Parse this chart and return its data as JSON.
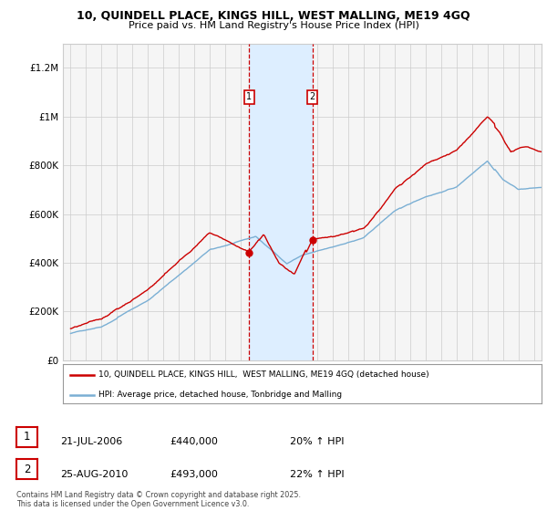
{
  "title_line1": "10, QUINDELL PLACE, KINGS HILL, WEST MALLING, ME19 4GQ",
  "title_line2": "Price paid vs. HM Land Registry's House Price Index (HPI)",
  "legend_label_red": "10, QUINDELL PLACE, KINGS HILL,  WEST MALLING, ME19 4GQ (detached house)",
  "legend_label_blue": "HPI: Average price, detached house, Tonbridge and Malling",
  "annotation1": {
    "label": "1",
    "date": "21-JUL-2006",
    "price": "£440,000",
    "hpi": "20% ↑ HPI"
  },
  "annotation2": {
    "label": "2",
    "date": "25-AUG-2010",
    "price": "£493,000",
    "hpi": "22% ↑ HPI"
  },
  "footer": "Contains HM Land Registry data © Crown copyright and database right 2025.\nThis data is licensed under the Open Government Licence v3.0.",
  "vline1_x": 2006.55,
  "vline2_x": 2010.65,
  "purchase1_x": 2006.55,
  "purchase1_y": 440000,
  "purchase2_x": 2010.65,
  "purchase2_y": 493000,
  "ylim": [
    0,
    1300000
  ],
  "xlim": [
    1994.5,
    2025.5
  ],
  "yticks": [
    0,
    200000,
    400000,
    600000,
    800000,
    1000000,
    1200000
  ],
  "ytick_labels": [
    "£0",
    "£200K",
    "£400K",
    "£600K",
    "£800K",
    "£1M",
    "£1.2M"
  ],
  "red_color": "#cc0000",
  "blue_color": "#7aafd4",
  "shade_color": "#ddeeff",
  "background_color": "#f5f5f5",
  "grid_color": "#cccccc"
}
